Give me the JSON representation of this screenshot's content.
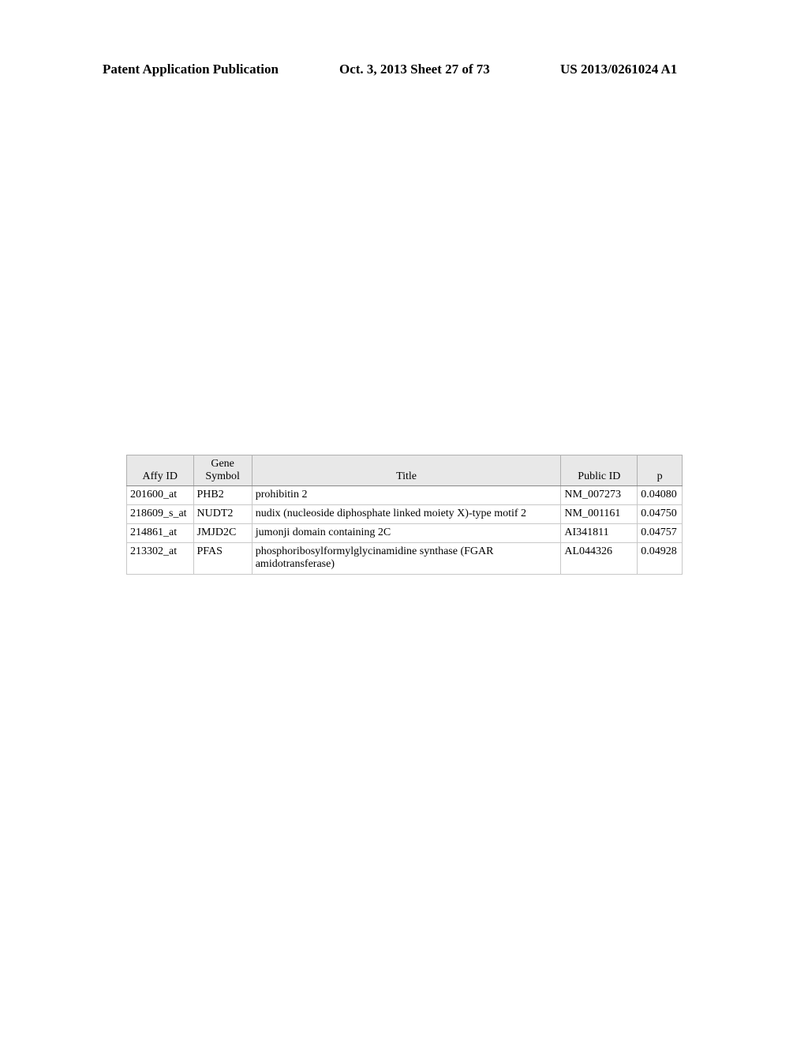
{
  "header": {
    "left": "Patent Application Publication",
    "center": "Oct. 3, 2013  Sheet 27 of 73",
    "right": "US 2013/0261024 A1"
  },
  "table": {
    "header_bg": "#e8e8e8",
    "border_color": "#b0b0b0",
    "columns": [
      {
        "label": "Affy ID"
      },
      {
        "label": "Gene Symbol"
      },
      {
        "label": "Title"
      },
      {
        "label": "Public ID"
      },
      {
        "label": "p"
      }
    ],
    "rows": [
      {
        "affy": "201600_at",
        "gene": "PHB2",
        "title": "prohibitin 2",
        "public": "NM_007273",
        "p": "0.04080"
      },
      {
        "affy": "218609_s_at",
        "gene": "NUDT2",
        "title": "nudix (nucleoside diphosphate linked moiety X)-type motif 2",
        "public": "NM_001161",
        "p": "0.04750"
      },
      {
        "affy": "214861_at",
        "gene": "JMJD2C",
        "title": "jumonji domain containing 2C",
        "public": "AI341811",
        "p": "0.04757"
      },
      {
        "affy": "213302_at",
        "gene": "PFAS",
        "title": "phosphoribosylformylglycinamidine synthase (FGAR amidotransferase)",
        "public": "AL044326",
        "p": "0.04928"
      }
    ]
  }
}
